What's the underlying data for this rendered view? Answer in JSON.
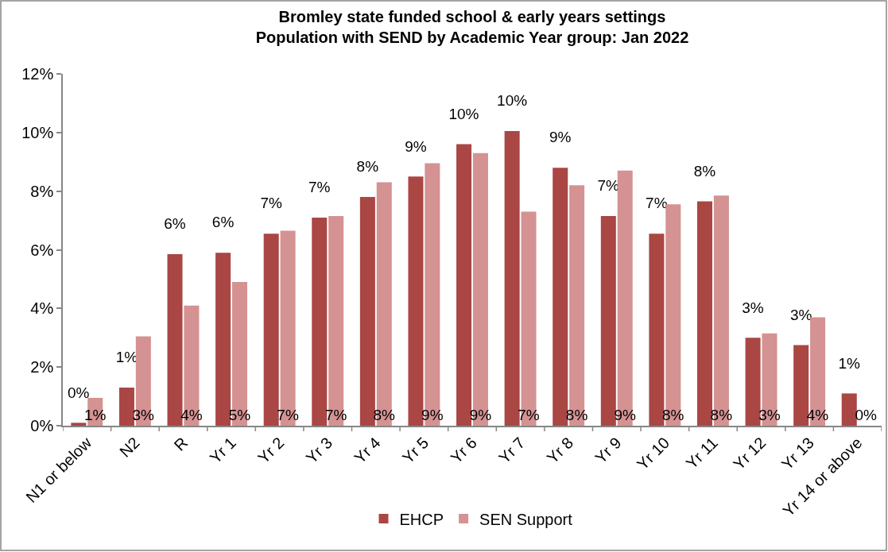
{
  "chart_data": {
    "type": "bar",
    "title": "Bromley state funded school & early years settings\nPopulation with SEND by Academic Year group: Jan 2022",
    "categories": [
      "N1 or below",
      "N2",
      "R",
      "Yr 1",
      "Yr 2",
      "Yr 3",
      "Yr 4",
      "Yr 5",
      "Yr 6",
      "Yr 7",
      "Yr 8",
      "Yr 9",
      "Yr 10",
      "Yr 11",
      "Yr 12",
      "Yr 13",
      "Yr 14 or above"
    ],
    "series": [
      {
        "name": "EHCP",
        "color": "#aa4644",
        "values": [
          0.1,
          1.3,
          5.85,
          5.9,
          6.55,
          7.1,
          7.8,
          8.5,
          9.6,
          10.05,
          8.8,
          7.15,
          6.55,
          7.65,
          3.0,
          2.75,
          1.1
        ],
        "value_labels": [
          "0%",
          "1%",
          "6%",
          "6%",
          "7%",
          "7%",
          "8%",
          "9%",
          "10%",
          "10%",
          "9%",
          "7%",
          "7%",
          "8%",
          "3%",
          "3%",
          "1%"
        ]
      },
      {
        "name": "SEN Support",
        "color": "#d49292",
        "values": [
          0.95,
          3.05,
          4.1,
          4.9,
          6.65,
          7.15,
          8.3,
          8.95,
          9.3,
          7.3,
          8.2,
          8.7,
          7.55,
          7.85,
          3.15,
          3.7,
          0
        ],
        "value_labels": [
          "1%",
          "3%",
          "4%",
          "5%",
          "7%",
          "7%",
          "8%",
          "9%",
          "9%",
          "7%",
          "8%",
          "9%",
          "8%",
          "8%",
          "3%",
          "4%",
          "0%"
        ]
      }
    ],
    "ylim": [
      0,
      12
    ],
    "yticks": [
      {
        "value": 0,
        "label": "0%"
      },
      {
        "value": 2,
        "label": "2%"
      },
      {
        "value": 4,
        "label": "4%"
      },
      {
        "value": 6,
        "label": "6%"
      },
      {
        "value": 8,
        "label": "8%"
      },
      {
        "value": 10,
        "label": "10%"
      },
      {
        "value": 12,
        "label": "12%"
      }
    ],
    "legend": "bottom"
  }
}
